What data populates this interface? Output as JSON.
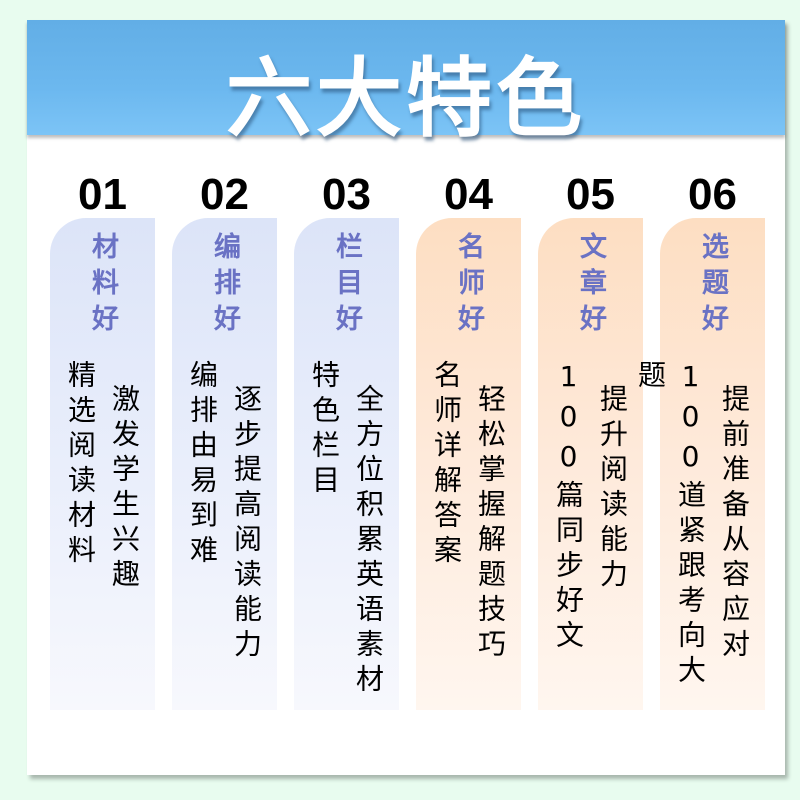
{
  "title": "六大特色",
  "features": [
    {
      "number": "01",
      "title": "材料好",
      "line1": "精选阅读材料",
      "line2": "激发学生兴趣",
      "theme": "blue"
    },
    {
      "number": "02",
      "title": "编排好",
      "line1": "编排由易到难",
      "line2": "逐步提高阅读能力",
      "theme": "blue"
    },
    {
      "number": "03",
      "title": "栏目好",
      "line1": "特色栏目",
      "line2": "全方位积累英语素材",
      "theme": "blue"
    },
    {
      "number": "04",
      "title": "名师好",
      "line1": "名师详解答案",
      "line2": "轻松掌握解题技巧",
      "theme": "orange"
    },
    {
      "number": "05",
      "title": "文章好",
      "line1": "100篇同步好文",
      "line2": "提升阅读能力",
      "theme": "orange"
    },
    {
      "number": "06",
      "title": "选题好",
      "line1": "100道紧跟考向大题",
      "line2": "提前准备从容应对",
      "theme": "orange"
    }
  ],
  "colors": {
    "banner": "#62aee6",
    "title_text": "#6a72c4",
    "blue_column": "#dce4f8",
    "orange_column": "#fddec2",
    "background": "#e8fcef"
  }
}
